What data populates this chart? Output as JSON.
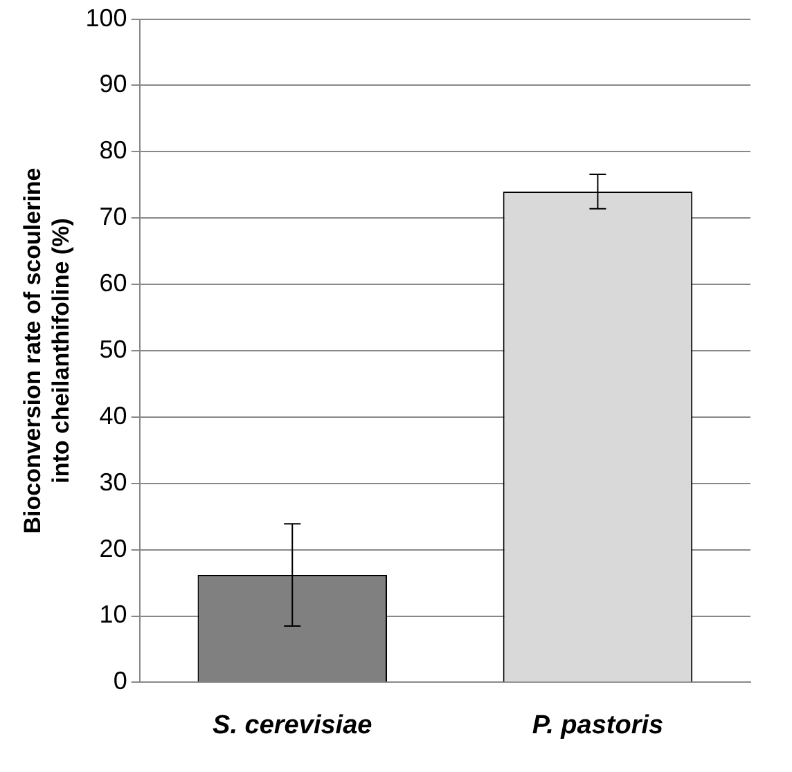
{
  "chart_data": {
    "type": "bar",
    "ylabel": "Bioconversion rate of scoulerine into cheilanthifoline (%)",
    "categories": [
      "S. cerevisiae",
      "P. pastoris"
    ],
    "values": [
      16.2,
      74
    ],
    "colors": [
      "#808080",
      "#d9d9d9"
    ],
    "errors": [
      7.7,
      2.6
    ],
    "ylim": [
      0,
      100
    ],
    "yticks": [
      0,
      10,
      20,
      30,
      40,
      50,
      60,
      70,
      80,
      90,
      100
    ],
    "grid": "y"
  }
}
